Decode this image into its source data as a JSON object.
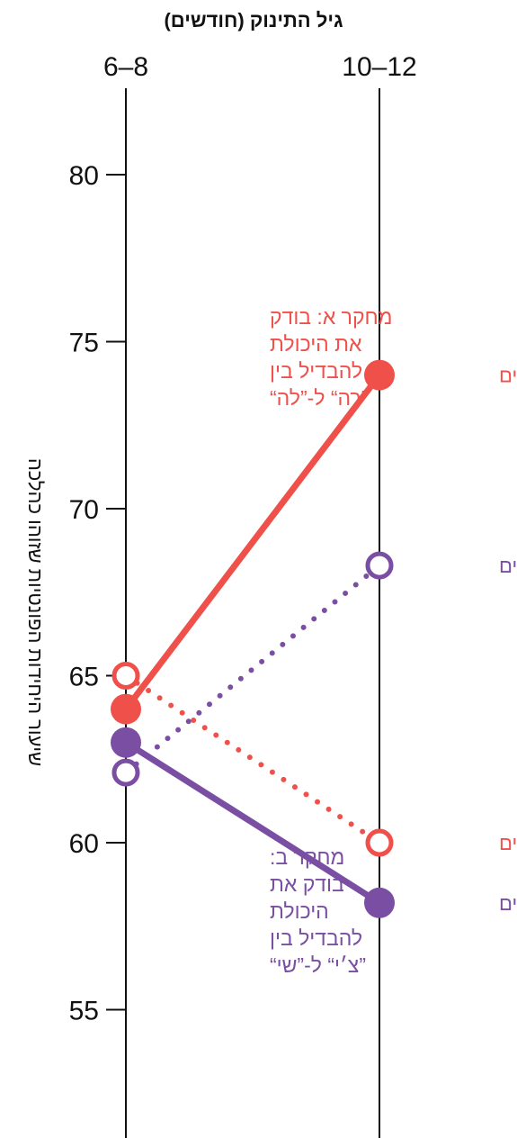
{
  "chart_data": {
    "type": "line",
    "xlabel": "גיל התינוק (חודשים)",
    "ylabel": "שיעור היחידות הפונטיות שזוהו כהלכה",
    "categories": [
      "6–8",
      "10–12"
    ],
    "ylim": [
      51,
      83
    ],
    "yticks": [
      55,
      60,
      65,
      70,
      75,
      80
    ],
    "colors": {
      "red": "#f0504a",
      "purple": "#7a4fa3"
    },
    "series": [
      {
        "name": "אמריקניים",
        "study": "a",
        "values": [
          64,
          74
        ],
        "style": "solid",
        "color": "#f0504a",
        "marker": "filled"
      },
      {
        "name": "יפניים",
        "study": "a",
        "values": [
          65,
          60
        ],
        "style": "dotted",
        "color": "#f0504a",
        "marker": "open"
      },
      {
        "name": "טייוואניים",
        "study": "b",
        "values": [
          62.1,
          68.3
        ],
        "style": "dotted",
        "color": "#7a4fa3",
        "marker": "open"
      },
      {
        "name": "אמריקניים",
        "study": "b",
        "values": [
          63,
          58.2
        ],
        "style": "solid",
        "color": "#7a4fa3",
        "marker": "filled"
      }
    ],
    "annotations": [
      {
        "study": "a",
        "color": "#f0504a",
        "lines": [
          "מחקר א: בודק",
          "את היכולת",
          "להבדיל בין",
          "”רה“ ל-”לה“"
        ]
      },
      {
        "study": "b",
        "color": "#7a4fa3",
        "lines": [
          "מחקר ב:",
          "בודק את",
          "היכולת",
          "להבדיל בין",
          "”צ׳י“ ל-”שי“"
        ]
      }
    ]
  }
}
